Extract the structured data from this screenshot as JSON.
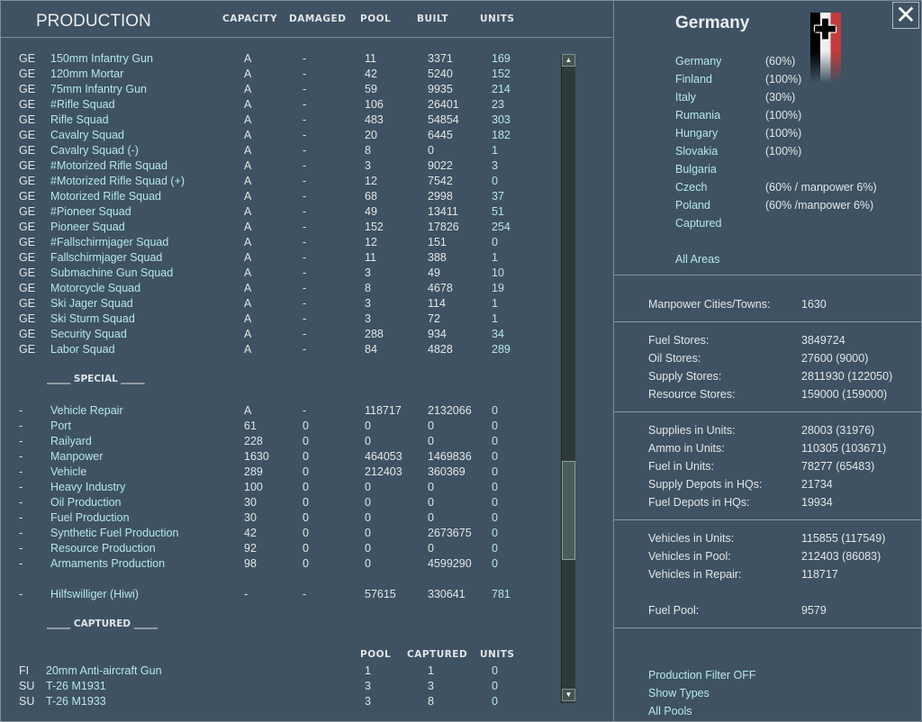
{
  "header": {
    "title": "PRODUCTION",
    "columns": [
      "CAPACITY",
      "DAMAGED",
      "POOL",
      "BUILT",
      "UNITS"
    ]
  },
  "units": [
    [
      "GE",
      "150mm Infantry Gun",
      "A",
      "-",
      "11",
      "3371",
      "169"
    ],
    [
      "GE",
      "120mm Mortar",
      "A",
      "-",
      "42",
      "5240",
      "152"
    ],
    [
      "GE",
      "75mm Infantry Gun",
      "A",
      "-",
      "59",
      "9935",
      "214"
    ],
    [
      "GE",
      "#Rifle Squad",
      "A",
      "-",
      "106",
      "26401",
      "23"
    ],
    [
      "GE",
      "Rifle Squad",
      "A",
      "-",
      "483",
      "54854",
      "303"
    ],
    [
      "GE",
      "Cavalry Squad",
      "A",
      "-",
      "20",
      "6445",
      "182"
    ],
    [
      "GE",
      "Cavalry Squad (-)",
      "A",
      "-",
      "8",
      "0",
      "1"
    ],
    [
      "GE",
      "#Motorized Rifle Squad",
      "A",
      "-",
      "3",
      "9022",
      "3"
    ],
    [
      "GE",
      "#Motorized Rifle Squad (+)",
      "A",
      "-",
      "12",
      "7542",
      "0"
    ],
    [
      "GE",
      "Motorized Rifle Squad",
      "A",
      "-",
      "68",
      "2998",
      "37"
    ],
    [
      "GE",
      "#Pioneer Squad",
      "A",
      "-",
      "49",
      "13411",
      "51"
    ],
    [
      "GE",
      "Pioneer Squad",
      "A",
      "-",
      "152",
      "17826",
      "254"
    ],
    [
      "GE",
      "#Fallschirmjager Squad",
      "A",
      "-",
      "12",
      "151",
      "0"
    ],
    [
      "GE",
      "Fallschirmjager Squad",
      "A",
      "-",
      "11",
      "388",
      "1"
    ],
    [
      "GE",
      "Submachine Gun Squad",
      "A",
      "-",
      "3",
      "49",
      "10"
    ],
    [
      "GE",
      "Motorcycle Squad",
      "A",
      "-",
      "8",
      "4678",
      "19"
    ],
    [
      "GE",
      "Ski Jager Squad",
      "A",
      "-",
      "3",
      "114",
      "1"
    ],
    [
      "GE",
      "Ski Sturm Squad",
      "A",
      "-",
      "3",
      "72",
      "1"
    ],
    [
      "GE",
      "Security Squad",
      "A",
      "-",
      "288",
      "934",
      "34"
    ],
    [
      "GE",
      "Labor Squad",
      "A",
      "-",
      "84",
      "4828",
      "289"
    ]
  ],
  "special_title": "_____ SPECIAL _____",
  "special": [
    [
      "-",
      "Vehicle Repair",
      "A",
      "-",
      "118717",
      "2132066",
      "0"
    ],
    [
      "-",
      "Port",
      "61",
      "0",
      "0",
      "0",
      "0"
    ],
    [
      "-",
      "Railyard",
      "228",
      "0",
      "0",
      "0",
      "0"
    ],
    [
      "-",
      "Manpower",
      "1630",
      "0",
      "464053",
      "1469836",
      "0"
    ],
    [
      "-",
      "Vehicle",
      "289",
      "0",
      "212403",
      "360369",
      "0"
    ],
    [
      "-",
      "Heavy Industry",
      "100",
      "0",
      "0",
      "0",
      "0"
    ],
    [
      "-",
      "Oil Production",
      "30",
      "0",
      "0",
      "0",
      "0"
    ],
    [
      "-",
      "Fuel Production",
      "30",
      "0",
      "0",
      "0",
      "0"
    ],
    [
      "-",
      "Synthetic Fuel Production",
      "42",
      "0",
      "0",
      "2673675",
      "0"
    ],
    [
      "-",
      "Resource Production",
      "92",
      "0",
      "0",
      "0",
      "0"
    ],
    [
      "-",
      "Armaments Production",
      "98",
      "0",
      "0",
      "4599290",
      "0"
    ]
  ],
  "hiwi": [
    "-",
    "Hilfswilliger (Hiwi)",
    "-",
    "-",
    "57615",
    "330641",
    "781"
  ],
  "captured_title": "_____ CAPTURED _____",
  "captured_columns": [
    "POOL",
    "CAPTURED",
    "UNITS"
  ],
  "captured": [
    [
      "FI",
      "20mm Anti-aircraft Gun",
      "1",
      "1",
      "0"
    ],
    [
      "SU",
      "T-26 M1931",
      "3",
      "3",
      "0"
    ],
    [
      "SU",
      "T-26 M1933",
      "3",
      "8",
      "0"
    ]
  ],
  "scrollbar": {
    "up": "▲",
    "down": "▼"
  },
  "right": {
    "nation": "Germany",
    "close": "✕",
    "areas": [
      [
        "Germany",
        "(60%)"
      ],
      [
        "Finland",
        "(100%)"
      ],
      [
        "Italy",
        "(30%)"
      ],
      [
        "Rumania",
        "(100%)"
      ],
      [
        "Hungary",
        "(100%)"
      ],
      [
        "Slovakia",
        "(100%)"
      ],
      [
        "Bulgaria",
        ""
      ],
      [
        "Czech",
        "(60% / manpower 6%)"
      ],
      [
        "Poland",
        "(60% /manpower 6%)"
      ],
      [
        "Captured",
        ""
      ]
    ],
    "all_areas": "All Areas",
    "stats": [
      [
        [
          "Manpower Cities/Towns:",
          "1630"
        ]
      ],
      [
        [
          "Fuel Stores:",
          "3849724"
        ],
        [
          "Oil Stores:",
          "27600 (9000)"
        ],
        [
          "Supply Stores:",
          "2811930 (122050)"
        ],
        [
          "Resource Stores:",
          "159000 (159000)"
        ]
      ],
      [
        [
          "Supplies in Units:",
          "28003 (31976)"
        ],
        [
          "Ammo in Units:",
          "110305 (103671)"
        ],
        [
          "Fuel in Units:",
          "78277 (65483)"
        ],
        [
          "Supply Depots in HQs:",
          "21734"
        ],
        [
          "Fuel Depots in HQs:",
          "19934"
        ]
      ],
      [
        [
          "Vehicles in Units:",
          "115855 (117549)"
        ],
        [
          "Vehicles in Pool:",
          "212403 (86083)"
        ],
        [
          "Vehicles in Repair:",
          "118717"
        ],
        [
          "",
          ""
        ],
        [
          "Fuel Pool:",
          "9579"
        ]
      ]
    ],
    "links": [
      "Production Filter OFF",
      "Show Types",
      "All Pools"
    ]
  }
}
